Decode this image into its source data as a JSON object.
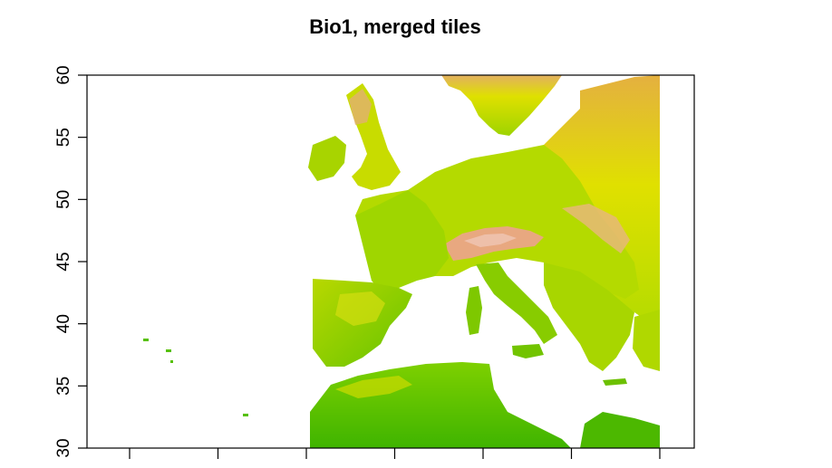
{
  "chart_data": {
    "type": "heatmap",
    "title": "Bio1, merged tiles",
    "xlabel": "",
    "ylabel": "",
    "ylim": [
      30,
      60
    ],
    "y_ticks": [
      "30",
      "35",
      "40",
      "45",
      "50",
      "55",
      "60"
    ],
    "y_values": [
      30,
      35,
      40,
      45,
      50,
      55,
      60
    ],
    "x_tick_count": 7,
    "x_tick_labels": [
      "",
      "",
      "",
      "",
      "",
      "",
      ""
    ],
    "raster_description": "elevation-derived temperature raster of Europe and North Africa",
    "colors": {
      "low": "#3fbf00",
      "mid": "#e6e600",
      "high": "#e8a070",
      "peak": "#f2c6b8"
    }
  }
}
